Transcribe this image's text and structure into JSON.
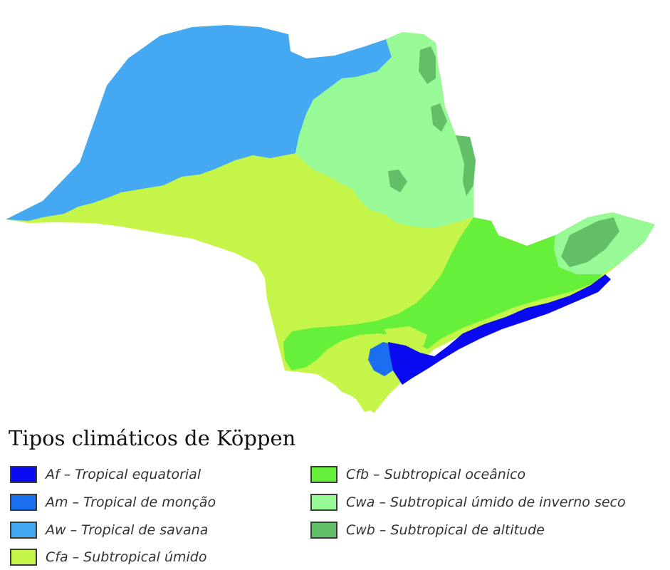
{
  "legend": {
    "title": "Tipos climáticos de Köppen",
    "items": [
      {
        "code": "Af",
        "label": "Af – Tropical equatorial",
        "color": "#0a0af0"
      },
      {
        "code": "Am",
        "label": "Am – Tropical de monção",
        "color": "#1a6ff0"
      },
      {
        "code": "Aw",
        "label": "Aw – Tropical de savana",
        "color": "#45a8f3"
      },
      {
        "code": "Cfa",
        "label": "Cfa – Subtropical úmido",
        "color": "#c5f548"
      },
      {
        "code": "Cfb",
        "label": "Cfb – Subtropical oceânico",
        "color": "#66f03a"
      },
      {
        "code": "Cwa",
        "label": "Cwa – Subtropical úmido de inverno seco",
        "color": "#98fa96"
      },
      {
        "code": "Cwb",
        "label": "Cwb – Subtropical de altitude",
        "color": "#62bf68"
      }
    ]
  }
}
